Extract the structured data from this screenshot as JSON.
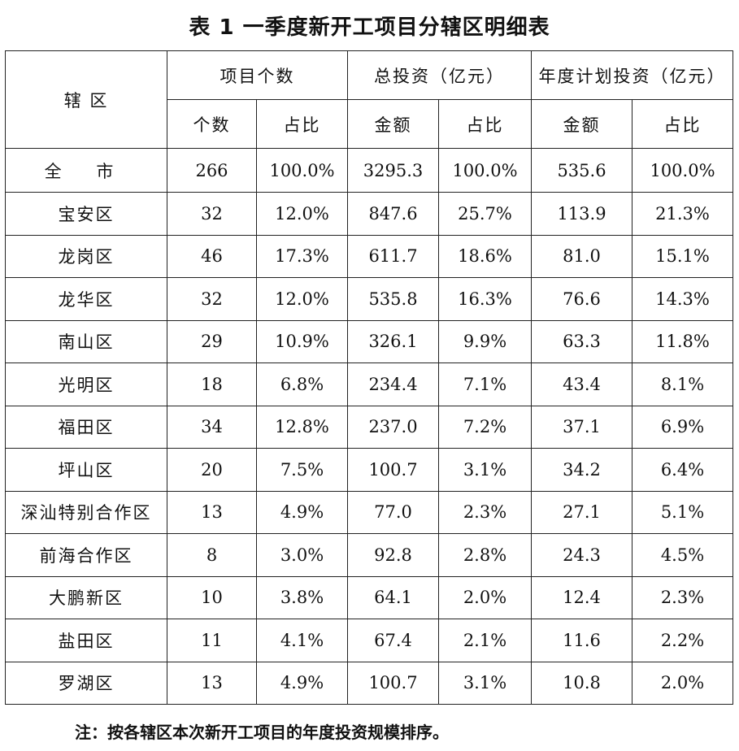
{
  "title": "表 1  一季度新开工项目分辖区明细表",
  "headers": {
    "district": "辖 区",
    "project_count": "项目个数",
    "total_investment": "总投资（亿元）",
    "annual_plan": "年度计划投资（亿元）",
    "count": "个数",
    "share": "占比",
    "amount": "金额",
    "share2": "占比",
    "amount2": "金额",
    "share3": "占比"
  },
  "total": {
    "label": "全 市",
    "count": "266",
    "count_share": "100.0%",
    "invest": "3295.3",
    "invest_share": "100.0%",
    "plan": "535.6",
    "plan_share": "100.0%"
  },
  "rows": [
    {
      "name": "宝安区",
      "count": "32",
      "count_share": "12.0%",
      "invest": "847.6",
      "invest_share": "25.7%",
      "plan": "113.9",
      "plan_share": "21.3%"
    },
    {
      "name": "龙岗区",
      "count": "46",
      "count_share": "17.3%",
      "invest": "611.7",
      "invest_share": "18.6%",
      "plan": "81.0",
      "plan_share": "15.1%"
    },
    {
      "name": "龙华区",
      "count": "32",
      "count_share": "12.0%",
      "invest": "535.8",
      "invest_share": "16.3%",
      "plan": "76.6",
      "plan_share": "14.3%"
    },
    {
      "name": "南山区",
      "count": "29",
      "count_share": "10.9%",
      "invest": "326.1",
      "invest_share": "9.9%",
      "plan": "63.3",
      "plan_share": "11.8%"
    },
    {
      "name": "光明区",
      "count": "18",
      "count_share": "6.8%",
      "invest": "234.4",
      "invest_share": "7.1%",
      "plan": "43.4",
      "plan_share": "8.1%"
    },
    {
      "name": "福田区",
      "count": "34",
      "count_share": "12.8%",
      "invest": "237.0",
      "invest_share": "7.2%",
      "plan": "37.1",
      "plan_share": "6.9%"
    },
    {
      "name": "坪山区",
      "count": "20",
      "count_share": "7.5%",
      "invest": "100.7",
      "invest_share": "3.1%",
      "plan": "34.2",
      "plan_share": "6.4%"
    },
    {
      "name": "深汕特别合作区",
      "count": "13",
      "count_share": "4.9%",
      "invest": "77.0",
      "invest_share": "2.3%",
      "plan": "27.1",
      "plan_share": "5.1%"
    },
    {
      "name": "前海合作区",
      "count": "8",
      "count_share": "3.0%",
      "invest": "92.8",
      "invest_share": "2.8%",
      "plan": "24.3",
      "plan_share": "4.5%"
    },
    {
      "name": "大鹏新区",
      "count": "10",
      "count_share": "3.8%",
      "invest": "64.1",
      "invest_share": "2.0%",
      "plan": "12.4",
      "plan_share": "2.3%"
    },
    {
      "name": "盐田区",
      "count": "11",
      "count_share": "4.1%",
      "invest": "67.4",
      "invest_share": "2.1%",
      "plan": "11.6",
      "plan_share": "2.2%"
    },
    {
      "name": "罗湖区",
      "count": "13",
      "count_share": "4.9%",
      "invest": "100.7",
      "invest_share": "3.1%",
      "plan": "10.8",
      "plan_share": "2.0%"
    }
  ],
  "note": "注：按各辖区本次新开工项目的年度投资规模排序。"
}
